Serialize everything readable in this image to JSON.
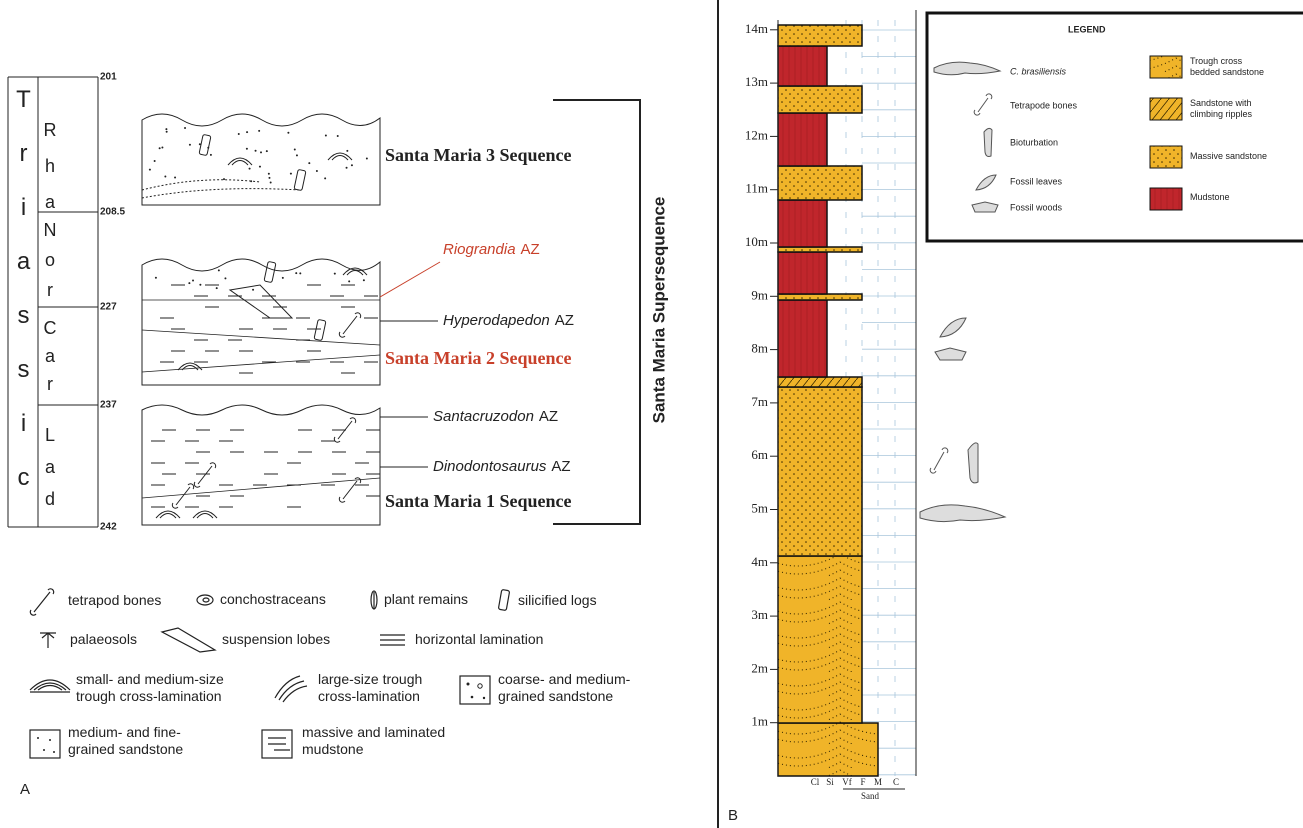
{
  "panel_a": {
    "label": "A",
    "period": "Triassic",
    "stages": [
      "Rha",
      "Nor",
      "Car",
      "Lad"
    ],
    "ages": [
      201,
      208.5,
      227,
      237,
      242
    ],
    "sequences": [
      "Santa Maria 3 Sequence",
      "Santa Maria 2 Sequence",
      "Santa Maria 1 Sequence"
    ],
    "zones": [
      {
        "genus": "Riograndia",
        "rank": "AZ"
      },
      {
        "genus": "Hyperodapedon",
        "rank": "AZ"
      },
      {
        "genus": "Santacruzodon",
        "rank": "AZ"
      },
      {
        "genus": "Dinodontosaurus",
        "rank": "AZ"
      }
    ],
    "supersequence": "Santa Maria Supersequence",
    "legend": [
      [
        "tetrapod bones"
      ],
      [
        "conchostraceans"
      ],
      [
        "plant remains"
      ],
      [
        "silicified logs"
      ],
      [
        "palaeosols"
      ],
      [
        "suspension lobes"
      ],
      [
        "horizontal lamination"
      ],
      [
        "small- and medium-size",
        "trough cross-lamination"
      ],
      [
        "large-size trough",
        "cross-lamination"
      ],
      [
        "coarse- and medium-",
        "grained sandstone"
      ],
      [
        "medium- and fine-",
        "grained sandstone"
      ],
      [
        "massive and laminated",
        "mudstone"
      ]
    ]
  },
  "panel_b": {
    "label": "B",
    "depths": [
      "1m",
      "2m",
      "3m",
      "4m",
      "5m",
      "6m",
      "7m",
      "8m",
      "9m",
      "10m",
      "11m",
      "12m",
      "13m",
      "14m"
    ],
    "grain_sizes": [
      "Cl",
      "Si",
      "Vf",
      "F",
      "M",
      "C"
    ],
    "sand": "Sand",
    "legend": {
      "title": "LEGEND",
      "fossils": [
        "C. brasiliensis",
        "Tetrapode bones",
        "Bioturbation",
        "Fossil leaves",
        "Fossil woods"
      ],
      "lithologies": [
        [
          "Trough cross",
          "bedded sandstone"
        ],
        [
          "Sandstone with",
          "climbing ripples"
        ],
        [
          "Massive sandstone"
        ],
        [
          "Mudstone"
        ]
      ]
    }
  }
}
